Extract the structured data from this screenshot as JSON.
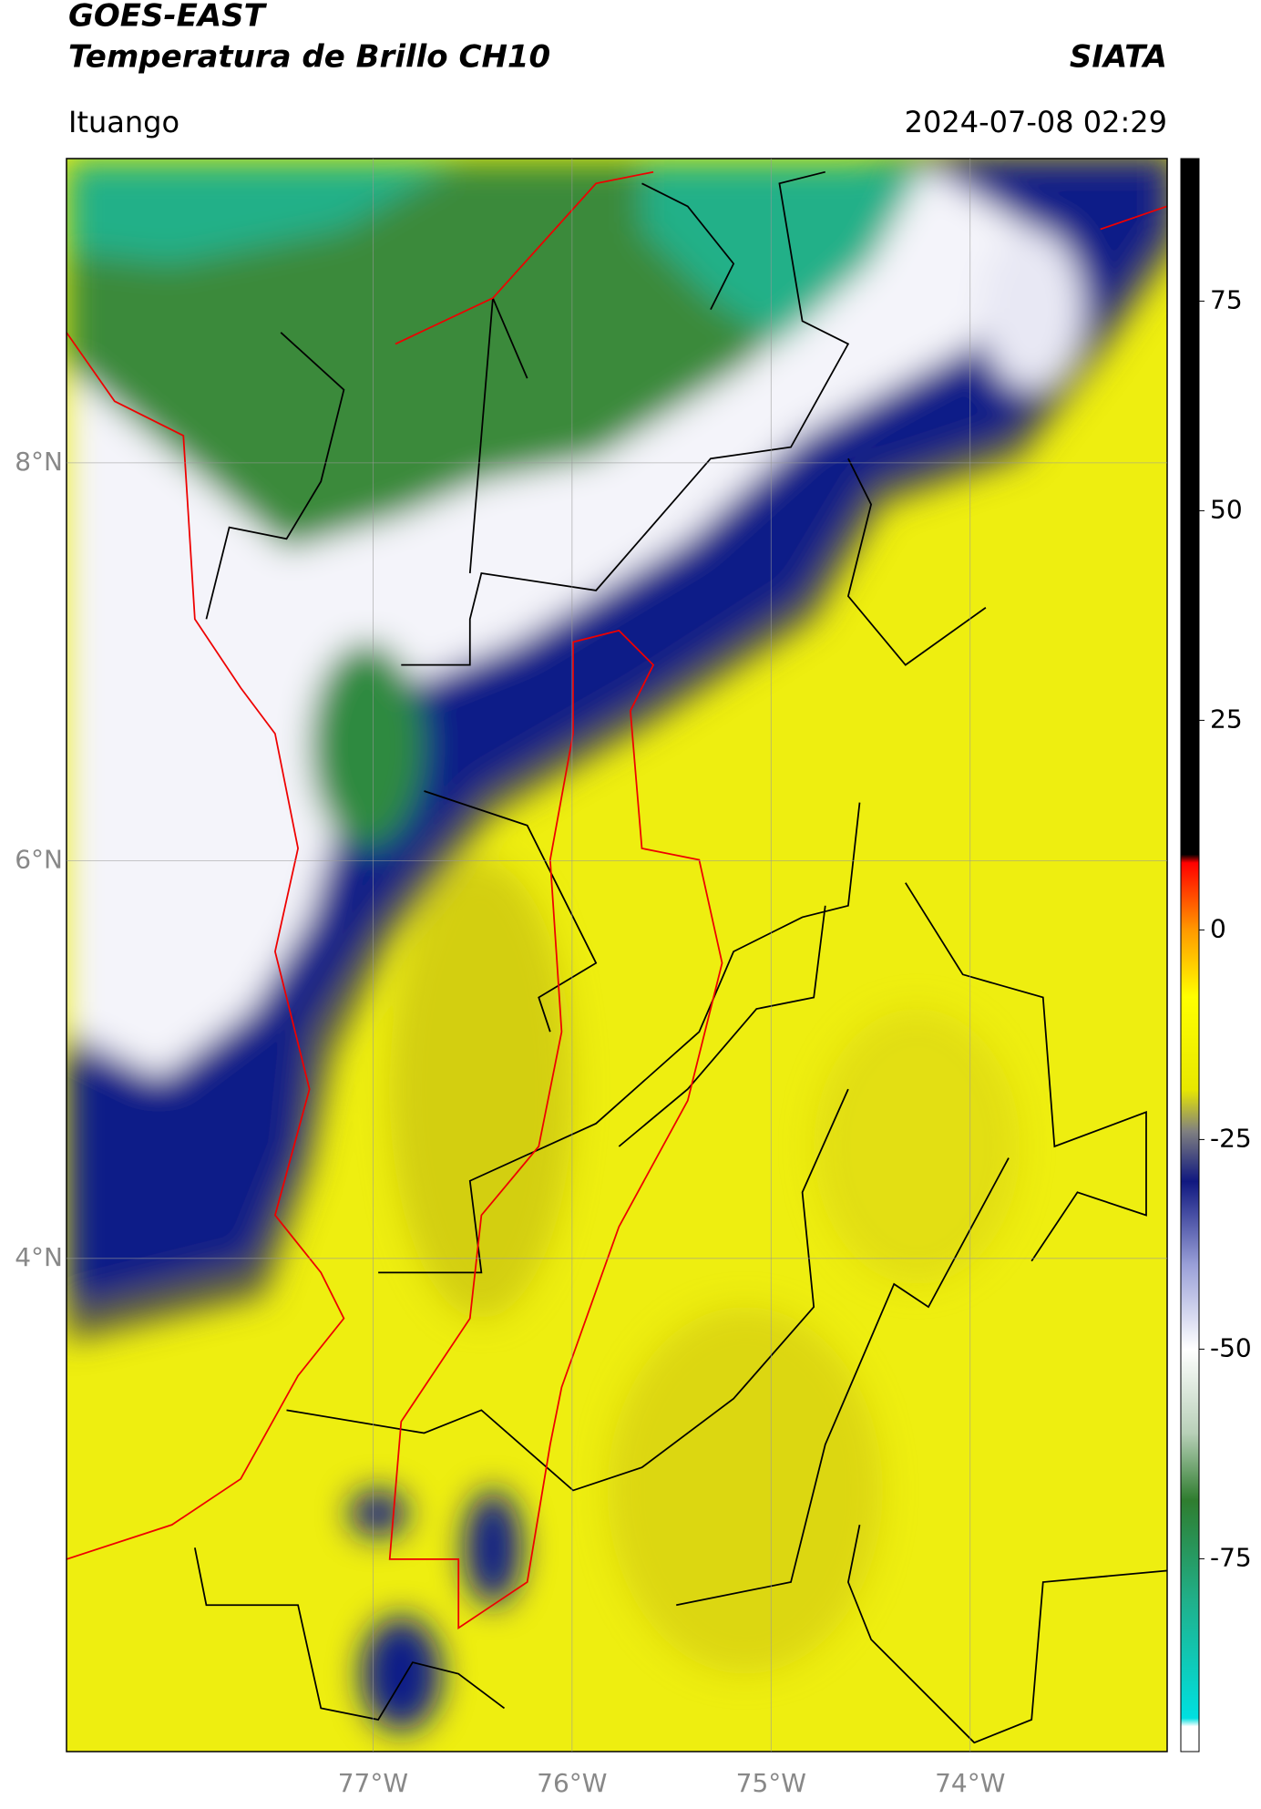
{
  "header": {
    "title": "GOES-EAST",
    "subtitle": "Temperatura de Brillo CH10",
    "brand": "SIATA",
    "location": "Ituango",
    "datetime": "2024-07-08 02:29"
  },
  "map": {
    "xlim": [
      -78.54,
      -73.01
    ],
    "ylim": [
      1.52,
      9.53
    ],
    "lat_ticks": [
      {
        "value": 8,
        "label": "8°N"
      },
      {
        "value": 6,
        "label": "6°N"
      },
      {
        "value": 4,
        "label": "4°N"
      }
    ],
    "lon_ticks": [
      {
        "value": -77,
        "label": "77°W"
      },
      {
        "value": -76,
        "label": "76°W"
      },
      {
        "value": -75,
        "label": "75°W"
      },
      {
        "value": -74,
        "label": "74°W"
      }
    ],
    "grid": true
  },
  "colorbar": {
    "ylim": [
      -98,
      92
    ],
    "yticks": [
      75,
      50,
      25,
      0,
      -25,
      -50,
      -75
    ],
    "stops": [
      {
        "value": -98,
        "color": "#ffffff"
      },
      {
        "value": -95,
        "color": "#ffffff"
      },
      {
        "value": -94,
        "color": "#00e0e0"
      },
      {
        "value": -80,
        "color": "#20b08a"
      },
      {
        "value": -68,
        "color": "#2f7d2f"
      },
      {
        "value": -60,
        "color": "#b8d0b8"
      },
      {
        "value": -50,
        "color": "#ffffff"
      },
      {
        "value": -40,
        "color": "#9aa0d8"
      },
      {
        "value": -30,
        "color": "#101880"
      },
      {
        "value": -24,
        "color": "#808080"
      },
      {
        "value": -19,
        "color": "#e8e800"
      },
      {
        "value": -8,
        "color": "#ffff00"
      },
      {
        "value": 0,
        "color": "#ff9900"
      },
      {
        "value": 8,
        "color": "#ff0000"
      },
      {
        "value": 9,
        "color": "#000000"
      },
      {
        "value": 92,
        "color": "#000000"
      }
    ]
  }
}
